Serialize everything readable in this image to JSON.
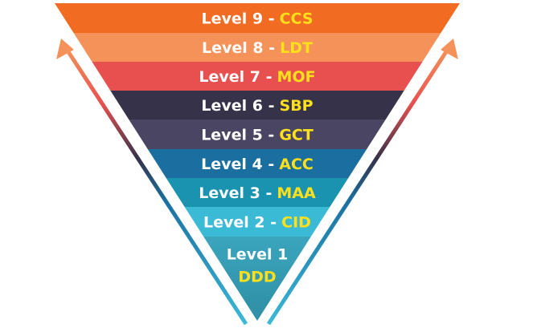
{
  "levels": [
    {
      "label": "Level 9 -",
      "code": "CCS"
    },
    {
      "label": "Level 8 -",
      "code": "LDT"
    },
    {
      "label": "Level 7 -",
      "code": "MOF"
    },
    {
      "label": "Level 6 -",
      "code": "SBP"
    },
    {
      "label": "Level 5 -",
      "code": "GCT"
    },
    {
      "label": "Level 4 -",
      "code": "ACC"
    },
    {
      "label": "Level 3 -",
      "code": "MAA"
    },
    {
      "label": "Level 2 -",
      "code": "CID"
    },
    {
      "label": "Level 1",
      "code": "DDD"
    }
  ]
}
